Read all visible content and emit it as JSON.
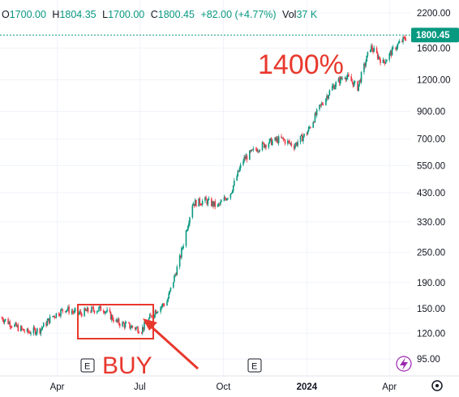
{
  "legend": {
    "open_label": "O",
    "open": "1700.00",
    "high_label": "H",
    "high": "1804.35",
    "low_label": "L",
    "low": "1700.00",
    "close_label": "C",
    "close": "1800.45",
    "change": "+82.00 (+4.77%)",
    "volume_label": "Vol",
    "volume": "37 K"
  },
  "annotations": {
    "gain_text": "1400%",
    "buy_text": "BUY"
  },
  "colors": {
    "up": "#089981",
    "down": "#f23645",
    "annotation": "#e8382d",
    "axis_text": "#131722",
    "grid": "#f0f3fa"
  },
  "icons": [
    "earnings-e-icon",
    "lightning-icon",
    "settings-icon"
  ],
  "chart_data": {
    "type": "candlestick",
    "y_scale": "log",
    "ylim": [
      85,
      2300
    ],
    "yticks": [
      "2200.00",
      "1600.00",
      "1200.00",
      "900.00",
      "700.00",
      "550.00",
      "430.00",
      "330.00",
      "250.00",
      "190.00",
      "150.00",
      "120.00",
      "95.00"
    ],
    "ytick_values": [
      2200,
      1600,
      1200,
      900,
      700,
      550,
      430,
      330,
      250,
      190,
      150,
      120,
      95
    ],
    "xticks": [
      "Apr",
      "Jul",
      "Oct",
      "2024",
      "Apr"
    ],
    "xtick_dates": [
      "2023-04-01",
      "2023-07-01",
      "2023-10-01",
      "2024-01-01",
      "2024-04-01"
    ],
    "xlim": [
      "2023-01-28",
      "2024-04-24"
    ],
    "last_price": "1800.45",
    "last_value": 1800.45,
    "series": [
      {
        "date": "2023-01-30",
        "close": 138
      },
      {
        "date": "2023-02-13",
        "close": 128
      },
      {
        "date": "2023-02-27",
        "close": 121
      },
      {
        "date": "2023-03-13",
        "close": 124
      },
      {
        "date": "2023-03-27",
        "close": 140
      },
      {
        "date": "2023-04-10",
        "close": 150
      },
      {
        "date": "2023-04-24",
        "close": 143
      },
      {
        "date": "2023-05-08",
        "close": 148
      },
      {
        "date": "2023-05-22",
        "close": 150
      },
      {
        "date": "2023-06-05",
        "close": 133
      },
      {
        "date": "2023-06-19",
        "close": 128
      },
      {
        "date": "2023-07-03",
        "close": 124
      },
      {
        "date": "2023-07-17",
        "close": 146
      },
      {
        "date": "2023-07-31",
        "close": 160
      },
      {
        "date": "2023-08-14",
        "close": 235
      },
      {
        "date": "2023-08-28",
        "close": 390
      },
      {
        "date": "2023-09-11",
        "close": 400
      },
      {
        "date": "2023-09-25",
        "close": 380
      },
      {
        "date": "2023-10-09",
        "close": 430
      },
      {
        "date": "2023-10-23",
        "close": 580
      },
      {
        "date": "2023-11-06",
        "close": 640
      },
      {
        "date": "2023-11-20",
        "close": 680
      },
      {
        "date": "2023-12-04",
        "close": 700
      },
      {
        "date": "2023-12-18",
        "close": 660
      },
      {
        "date": "2024-01-01",
        "close": 740
      },
      {
        "date": "2024-01-15",
        "close": 930
      },
      {
        "date": "2024-01-29",
        "close": 1120
      },
      {
        "date": "2024-02-12",
        "close": 1250
      },
      {
        "date": "2024-02-26",
        "close": 1120
      },
      {
        "date": "2024-03-11",
        "close": 1620
      },
      {
        "date": "2024-03-25",
        "close": 1400
      },
      {
        "date": "2024-04-08",
        "close": 1620
      },
      {
        "date": "2024-04-22",
        "close": 1800
      }
    ]
  }
}
